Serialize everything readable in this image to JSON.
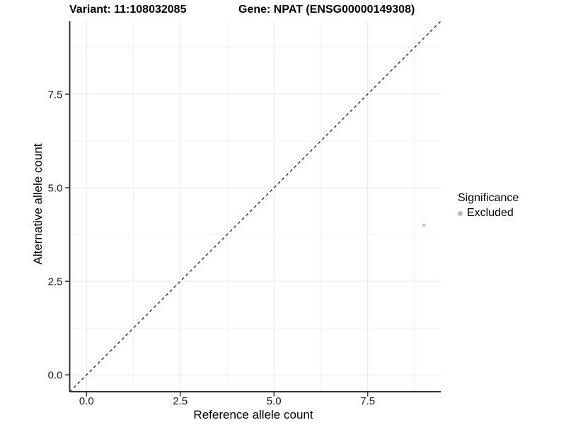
{
  "header": {
    "variant_title": "Variant: 11:108032085",
    "gene_title": "Gene: NPAT (ENSG00000149308)"
  },
  "legend": {
    "title": "Significance",
    "items": [
      {
        "label": "Excluded",
        "color": "#b9b9b9"
      }
    ]
  },
  "colors": {
    "background": "#ffffff",
    "major_grid": "#e7e7e7",
    "minor_grid": "#f1f1f1",
    "axis_line": "#333333",
    "tick_mark": "#333333",
    "tick_label": "#1a1a1a",
    "reference_line": "#1a1a1a",
    "point_excluded": "#c3c3c3"
  },
  "chart_data": {
    "type": "scatter",
    "title": "Variant: 11:108032085   Gene: NPAT (ENSG00000149308)",
    "xlabel": "Reference allele count",
    "ylabel": "Alternative allele count",
    "xlim": [
      -0.45,
      9.45
    ],
    "ylim": [
      -0.45,
      9.45
    ],
    "x_major_ticks": [
      0,
      2.5,
      5,
      7.5
    ],
    "y_major_ticks": [
      0,
      2.5,
      5,
      7.5
    ],
    "x_tick_labels": [
      "0.0",
      "2.5",
      "5.0",
      "7.5"
    ],
    "y_tick_labels": [
      "0.0",
      "2.5",
      "5.0",
      "7.5"
    ],
    "x_minor_ticks": [
      1.25,
      3.75,
      6.25,
      8.75
    ],
    "y_minor_ticks": [
      1.25,
      3.75,
      6.25,
      8.75
    ],
    "grid": true,
    "legend_position": "right",
    "reference_line": {
      "slope": 1,
      "intercept": 0,
      "style": "dashed"
    },
    "series": [
      {
        "name": "Excluded",
        "points": [
          {
            "x": 9,
            "y": 4
          }
        ]
      }
    ]
  }
}
